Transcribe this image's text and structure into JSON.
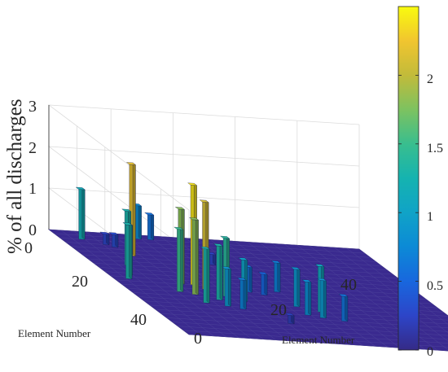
{
  "chart_data": {
    "type": "bar3d",
    "title": "",
    "x_axis": {
      "label": "Element Number",
      "ticks": [
        "0",
        "20",
        "40"
      ],
      "range": [
        0,
        50
      ]
    },
    "y_axis": {
      "label": "Element Number",
      "ticks": [
        "0",
        "20",
        "40"
      ],
      "range": [
        0,
        50
      ]
    },
    "z_axis": {
      "label": "% of all discharges",
      "ticks": [
        "0",
        "1",
        "2",
        "3"
      ],
      "range": [
        0,
        3
      ]
    },
    "colorbar": {
      "ticks": [
        "0",
        "0.5",
        "1",
        "1.5",
        "2"
      ],
      "range": [
        0,
        2.5
      ],
      "colormap": "parula"
    },
    "grid": true,
    "floor_color": "#3a2a8f",
    "peaks": [
      {
        "x": 1,
        "y": 13,
        "z": 0.8
      },
      {
        "x": 1,
        "y": 15,
        "z": 0.6
      },
      {
        "x": 3,
        "y": 3,
        "z": 1.2
      },
      {
        "x": 10,
        "y": 8,
        "z": 2.2
      },
      {
        "x": 15,
        "y": 5,
        "z": 1.3
      },
      {
        "x": 20,
        "y": 3,
        "z": 1.2
      },
      {
        "x": 23,
        "y": 10,
        "z": 1.8
      },
      {
        "x": 23,
        "y": 12,
        "z": 2.4
      },
      {
        "x": 25,
        "y": 13,
        "z": 2.1
      },
      {
        "x": 28,
        "y": 10,
        "z": 1.8
      },
      {
        "x": 28,
        "y": 15,
        "z": 1.4
      },
      {
        "x": 27,
        "y": 8,
        "z": 1.5
      },
      {
        "x": 30,
        "y": 17,
        "z": 1.0
      },
      {
        "x": 30,
        "y": 13,
        "z": 1.3
      },
      {
        "x": 32,
        "y": 10,
        "z": 1.3
      },
      {
        "x": 33,
        "y": 13,
        "z": 0.9
      },
      {
        "x": 34,
        "y": 15,
        "z": 0.7
      },
      {
        "x": 25,
        "y": 20,
        "z": 0.6
      },
      {
        "x": 24,
        "y": 25,
        "z": 0.7
      },
      {
        "x": 33,
        "y": 28,
        "z": 1.1
      },
      {
        "x": 35,
        "y": 25,
        "z": 0.8
      },
      {
        "x": 22,
        "y": 2,
        "z": 1.3
      },
      {
        "x": 26,
        "y": 22,
        "z": 0.5
      },
      {
        "x": 31,
        "y": 25,
        "z": 0.9
      },
      {
        "x": 37,
        "y": 30,
        "z": 0.6
      },
      {
        "x": 36,
        "y": 27,
        "z": 0.9
      },
      {
        "x": 12,
        "y": 20,
        "z": 0.25
      },
      {
        "x": 13,
        "y": 21,
        "z": 0.3
      },
      {
        "x": 5,
        "y": 6,
        "z": 0.25
      },
      {
        "x": 6,
        "y": 7,
        "z": 0.3
      },
      {
        "x": 40,
        "y": 20,
        "z": 0.2
      }
    ]
  }
}
